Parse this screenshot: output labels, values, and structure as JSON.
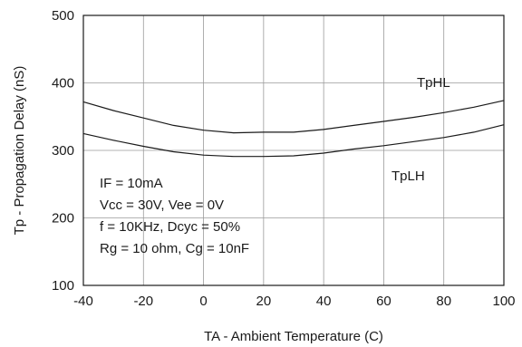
{
  "chart_data": {
    "type": "line",
    "title": "",
    "xlabel": "TA - Ambient Temperature (C)",
    "ylabel": "Tp - Propagation Delay (nS)",
    "xlim": [
      -40,
      100
    ],
    "ylim": [
      100,
      500
    ],
    "xticks": [
      -40,
      -20,
      0,
      20,
      40,
      60,
      80,
      100
    ],
    "yticks": [
      100,
      200,
      300,
      400,
      500
    ],
    "grid": true,
    "series": [
      {
        "name": "TpHL",
        "x": [
          -40,
          -30,
          -20,
          -10,
          0,
          10,
          20,
          30,
          40,
          50,
          60,
          70,
          80,
          90,
          100
        ],
        "y": [
          372,
          359,
          348,
          337,
          330,
          326,
          327,
          327,
          331,
          337,
          343,
          349,
          356,
          364,
          374
        ]
      },
      {
        "name": "TpLH",
        "x": [
          -40,
          -30,
          -20,
          -10,
          0,
          10,
          20,
          30,
          40,
          50,
          60,
          70,
          80,
          90,
          100
        ],
        "y": [
          325,
          315,
          306,
          298,
          293,
          291,
          291,
          292,
          296,
          302,
          307,
          313,
          319,
          327,
          338
        ]
      }
    ],
    "annotations": [
      "IF = 10mA",
      "Vcc = 30V, Vee = 0V",
      "f = 10KHz, Dcyc = 50%",
      "Rg = 10 ohm, Cg = 10nF"
    ]
  }
}
